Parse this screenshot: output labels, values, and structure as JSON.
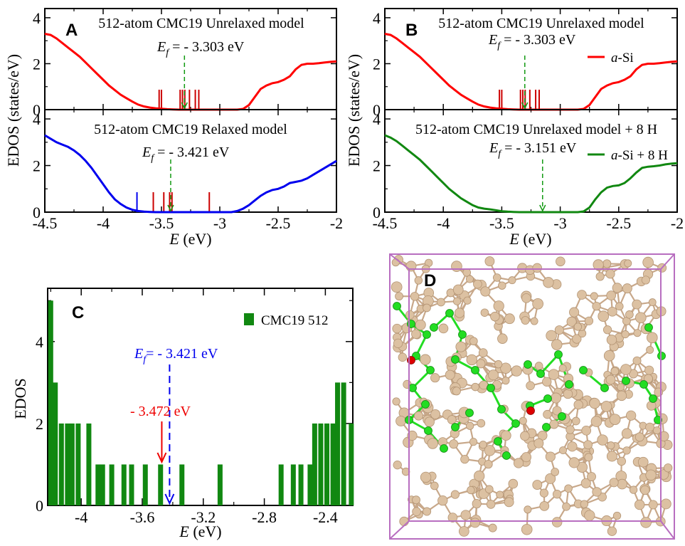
{
  "chart_data": [
    {
      "panel_letter": "A",
      "type": "line",
      "xlabel": "E (eV)",
      "ylabel": "EDOS (states/eV)",
      "xlim": [
        -4.5,
        -2
      ],
      "x_ticks": [
        "-4.5",
        "-4",
        "-3.5",
        "-3",
        "-2.5",
        "-2"
      ],
      "subplots": [
        {
          "title": "512-atom CMC19 Unrelaxed model",
          "ylim": [
            0,
            4.4
          ],
          "y_ticks": [
            "0",
            "2",
            "4"
          ],
          "fermi_label": "E",
          "fermi_sub": "f",
          "fermi_value_text": " = - 3.303 eV",
          "fermi_energy": -3.303,
          "color": "#ff0000",
          "series": [
            {
              "x": [
                -4.5,
                -4.45,
                -4.4,
                -4.35,
                -4.3,
                -4.25,
                -4.2,
                -4.15,
                -4.1,
                -4.05,
                -4.0,
                -3.95,
                -3.9,
                -3.85,
                -3.8,
                -3.75,
                -3.7,
                -3.65,
                -3.6,
                -3.55,
                -3.5,
                -3.45,
                -3.4,
                -3.35,
                -3.3,
                -3.25,
                -3.2,
                -3.15,
                -3.1,
                -3.05,
                -3.0,
                -2.95,
                -2.9,
                -2.85,
                -2.8,
                -2.75,
                -2.7,
                -2.65,
                -2.6,
                -2.55,
                -2.5,
                -2.45,
                -2.4,
                -2.35,
                -2.3,
                -2.25,
                -2.2,
                -2.15,
                -2.1,
                -2.05,
                -2.0
              ],
              "y": [
                3.3,
                3.25,
                3.1,
                2.9,
                2.7,
                2.5,
                2.3,
                2.05,
                1.8,
                1.55,
                1.3,
                1.05,
                0.85,
                0.65,
                0.5,
                0.35,
                0.22,
                0.14,
                0.09,
                0.06,
                0.04,
                0.02,
                0.01,
                0,
                0,
                0,
                0,
                0,
                0,
                0,
                0,
                0,
                0,
                0,
                0.03,
                0.2,
                0.55,
                0.9,
                1.05,
                1.15,
                1.2,
                1.3,
                1.45,
                1.75,
                1.95,
                2.0,
                2.0,
                2.02,
                2.05,
                2.08,
                2.1
              ]
            }
          ],
          "sticks": [
            {
              "x": -3.52,
              "color": "#cc0000"
            },
            {
              "x": -3.5,
              "color": "#cc0000"
            },
            {
              "x": -3.34,
              "color": "#cc0000"
            },
            {
              "x": -3.32,
              "color": "#cc0000"
            },
            {
              "x": -3.3,
              "color": "#cc0000"
            },
            {
              "x": -3.26,
              "color": "#cc0000"
            },
            {
              "x": -3.21,
              "color": "#cc0000"
            },
            {
              "x": -3.18,
              "color": "#cc0000"
            }
          ]
        },
        {
          "title": "512-atom CMC19 Relaxed model",
          "ylim": [
            0,
            4.4
          ],
          "y_ticks": [
            "0",
            "2",
            "4"
          ],
          "fermi_label": "E",
          "fermi_sub": "f",
          "fermi_value_text": " = - 3.421 eV",
          "fermi_energy": -3.421,
          "color": "#0000ee",
          "series": [
            {
              "x": [
                -4.5,
                -4.45,
                -4.4,
                -4.35,
                -4.3,
                -4.25,
                -4.2,
                -4.15,
                -4.1,
                -4.05,
                -4.0,
                -3.95,
                -3.9,
                -3.85,
                -3.8,
                -3.75,
                -3.7,
                -3.65,
                -3.6,
                -3.55,
                -3.5,
                -3.45,
                -3.4,
                -3.35,
                -3.3,
                -3.25,
                -3.2,
                -3.15,
                -3.1,
                -3.05,
                -3.0,
                -2.95,
                -2.9,
                -2.85,
                -2.8,
                -2.75,
                -2.7,
                -2.65,
                -2.6,
                -2.55,
                -2.5,
                -2.45,
                -2.4,
                -2.35,
                -2.3,
                -2.25,
                -2.2,
                -2.15,
                -2.1,
                -2.05,
                -2.0
              ],
              "y": [
                3.3,
                3.15,
                3.0,
                2.9,
                2.8,
                2.65,
                2.45,
                2.2,
                1.9,
                1.55,
                1.2,
                0.85,
                0.55,
                0.35,
                0.2,
                0.1,
                0.05,
                0.02,
                0.01,
                0,
                0,
                0,
                0,
                0,
                0,
                0,
                0,
                0,
                0,
                0,
                0,
                0,
                0,
                0.05,
                0.15,
                0.3,
                0.5,
                0.7,
                0.85,
                0.95,
                1.0,
                1.1,
                1.25,
                1.3,
                1.35,
                1.45,
                1.6,
                1.75,
                1.9,
                2.05,
                2.2
              ]
            }
          ],
          "sticks": [
            {
              "x": -3.71,
              "color": "#0000ee"
            },
            {
              "x": -3.57,
              "color": "#cc0000"
            },
            {
              "x": -3.48,
              "color": "#cc0000"
            },
            {
              "x": -3.43,
              "color": "#cc0000"
            },
            {
              "x": -3.41,
              "color": "#cc0000"
            },
            {
              "x": -3.09,
              "color": "#cc0000"
            }
          ]
        }
      ]
    },
    {
      "panel_letter": "B",
      "type": "line",
      "xlabel": "E (eV)",
      "ylabel": "EDOS (states/eV)",
      "xlim": [
        -4.5,
        -2
      ],
      "x_ticks": [
        "-4.5",
        "-4",
        "-3.5",
        "-3",
        "-2.5",
        "-2"
      ],
      "subplots": [
        {
          "title": "512-atom CMC19 Unrelaxed model",
          "ylim": [
            0,
            4.4
          ],
          "y_ticks": [
            "0",
            "2",
            "4"
          ],
          "fermi_label": "E",
          "fermi_sub": "f",
          "fermi_value_text": " = - 3.303 eV",
          "fermi_energy": -3.303,
          "color": "#ff0000",
          "legend": {
            "italic": "a",
            "rest": "-Si"
          },
          "series": [
            {
              "x": [
                -4.5,
                -4.45,
                -4.4,
                -4.35,
                -4.3,
                -4.25,
                -4.2,
                -4.15,
                -4.1,
                -4.05,
                -4.0,
                -3.95,
                -3.9,
                -3.85,
                -3.8,
                -3.75,
                -3.7,
                -3.65,
                -3.6,
                -3.55,
                -3.5,
                -3.45,
                -3.4,
                -3.35,
                -3.3,
                -3.25,
                -3.2,
                -3.15,
                -3.1,
                -3.05,
                -3.0,
                -2.95,
                -2.9,
                -2.85,
                -2.8,
                -2.75,
                -2.7,
                -2.65,
                -2.6,
                -2.55,
                -2.5,
                -2.45,
                -2.4,
                -2.35,
                -2.3,
                -2.25,
                -2.2,
                -2.15,
                -2.1,
                -2.05,
                -2.0
              ],
              "y": [
                3.3,
                3.25,
                3.1,
                2.9,
                2.7,
                2.5,
                2.3,
                2.05,
                1.8,
                1.55,
                1.3,
                1.05,
                0.85,
                0.65,
                0.5,
                0.35,
                0.22,
                0.14,
                0.09,
                0.06,
                0.04,
                0.02,
                0.01,
                0,
                0,
                0,
                0,
                0,
                0,
                0,
                0,
                0,
                0,
                0,
                0.03,
                0.2,
                0.55,
                0.9,
                1.05,
                1.15,
                1.2,
                1.3,
                1.45,
                1.75,
                1.95,
                2.0,
                2.0,
                2.02,
                2.05,
                2.08,
                2.1
              ]
            }
          ],
          "sticks": [
            {
              "x": -3.52,
              "color": "#cc0000"
            },
            {
              "x": -3.5,
              "color": "#cc0000"
            },
            {
              "x": -3.34,
              "color": "#cc0000"
            },
            {
              "x": -3.32,
              "color": "#cc0000"
            },
            {
              "x": -3.3,
              "color": "#cc0000"
            },
            {
              "x": -3.26,
              "color": "#cc0000"
            },
            {
              "x": -3.21,
              "color": "#cc0000"
            },
            {
              "x": -3.18,
              "color": "#cc0000"
            }
          ]
        },
        {
          "title": "512-atom CMC19 Unrelaxed model + 8 H",
          "ylim": [
            0,
            4.4
          ],
          "y_ticks": [
            "0",
            "2",
            "4"
          ],
          "fermi_label": "E",
          "fermi_sub": "f",
          "fermi_value_text": " = - 3.151 eV",
          "fermi_energy": -3.151,
          "color": "#118811",
          "legend": {
            "italic": "a",
            "rest": "-Si + 8 H"
          },
          "series": [
            {
              "x": [
                -4.5,
                -4.45,
                -4.4,
                -4.35,
                -4.3,
                -4.25,
                -4.2,
                -4.15,
                -4.1,
                -4.05,
                -4.0,
                -3.95,
                -3.9,
                -3.85,
                -3.8,
                -3.75,
                -3.7,
                -3.65,
                -3.6,
                -3.55,
                -3.5,
                -3.45,
                -3.4,
                -3.35,
                -3.3,
                -3.25,
                -3.2,
                -3.15,
                -3.1,
                -3.05,
                -3.0,
                -2.95,
                -2.9,
                -2.85,
                -2.8,
                -2.75,
                -2.7,
                -2.65,
                -2.6,
                -2.55,
                -2.5,
                -2.45,
                -2.4,
                -2.35,
                -2.3,
                -2.25,
                -2.2,
                -2.15,
                -2.1,
                -2.05,
                -2.0
              ],
              "y": [
                3.3,
                3.2,
                3.05,
                2.85,
                2.65,
                2.45,
                2.25,
                2.0,
                1.75,
                1.5,
                1.25,
                1.0,
                0.8,
                0.6,
                0.45,
                0.3,
                0.2,
                0.15,
                0.12,
                0.08,
                0.04,
                0.02,
                0.01,
                0,
                0,
                0,
                0,
                0,
                0,
                0,
                0,
                0,
                0,
                0,
                0.03,
                0.2,
                0.55,
                0.85,
                1.05,
                1.12,
                1.15,
                1.25,
                1.45,
                1.7,
                1.9,
                1.95,
                1.97,
                2.0,
                2.05,
                2.08,
                2.1
              ]
            }
          ],
          "sticks": []
        }
      ]
    },
    {
      "panel_letter": "C",
      "type": "bar",
      "xlabel": "E (eV)",
      "ylabel": "EDOS",
      "xlim": [
        -4.22,
        -2.22
      ],
      "ylim": [
        0,
        5.3
      ],
      "x_ticks": [
        "-4",
        "-3.6",
        "-3.2",
        "-2.8",
        "-2.4"
      ],
      "x_tick_values": [
        -4.0,
        -3.6,
        -3.2,
        -2.8,
        -2.4
      ],
      "y_ticks": [
        "0",
        "2",
        "4"
      ],
      "legend": "CMC19 512",
      "bar_color": "#118811",
      "fermi_label": "E",
      "fermi_sub": "f",
      "fermi_value_text": "= - 3.421 eV",
      "fermi_energy": -3.421,
      "fermi_color": "#0000ee",
      "marker_text": "- 3.472 eV",
      "marker_energy": -3.472,
      "marker_color": "#ee0000",
      "x": [
        -4.2,
        -4.17,
        -4.13,
        -4.09,
        -4.06,
        -4.02,
        -3.95,
        -3.89,
        -3.86,
        -3.8,
        -3.72,
        -3.67,
        -3.58,
        -3.48,
        -3.34,
        -3.09,
        -2.69,
        -2.61,
        -2.56,
        -2.5,
        -2.47,
        -2.43,
        -2.39,
        -2.35,
        -2.32,
        -2.28,
        -2.23
      ],
      "values": [
        5,
        3,
        2,
        2,
        2,
        2,
        2,
        1,
        1,
        1,
        1,
        1,
        1,
        1,
        1,
        1,
        1,
        1,
        1,
        1,
        2,
        2,
        2,
        2,
        3,
        3,
        2
      ]
    }
  ],
  "panel_d": {
    "panel_letter": "D",
    "atom_color": "#dcc1a2",
    "bond_color": "#c8a88a",
    "highlight_color": "#22dd22",
    "defect_color": "#dd0000",
    "box_color": "#b86ec0"
  }
}
